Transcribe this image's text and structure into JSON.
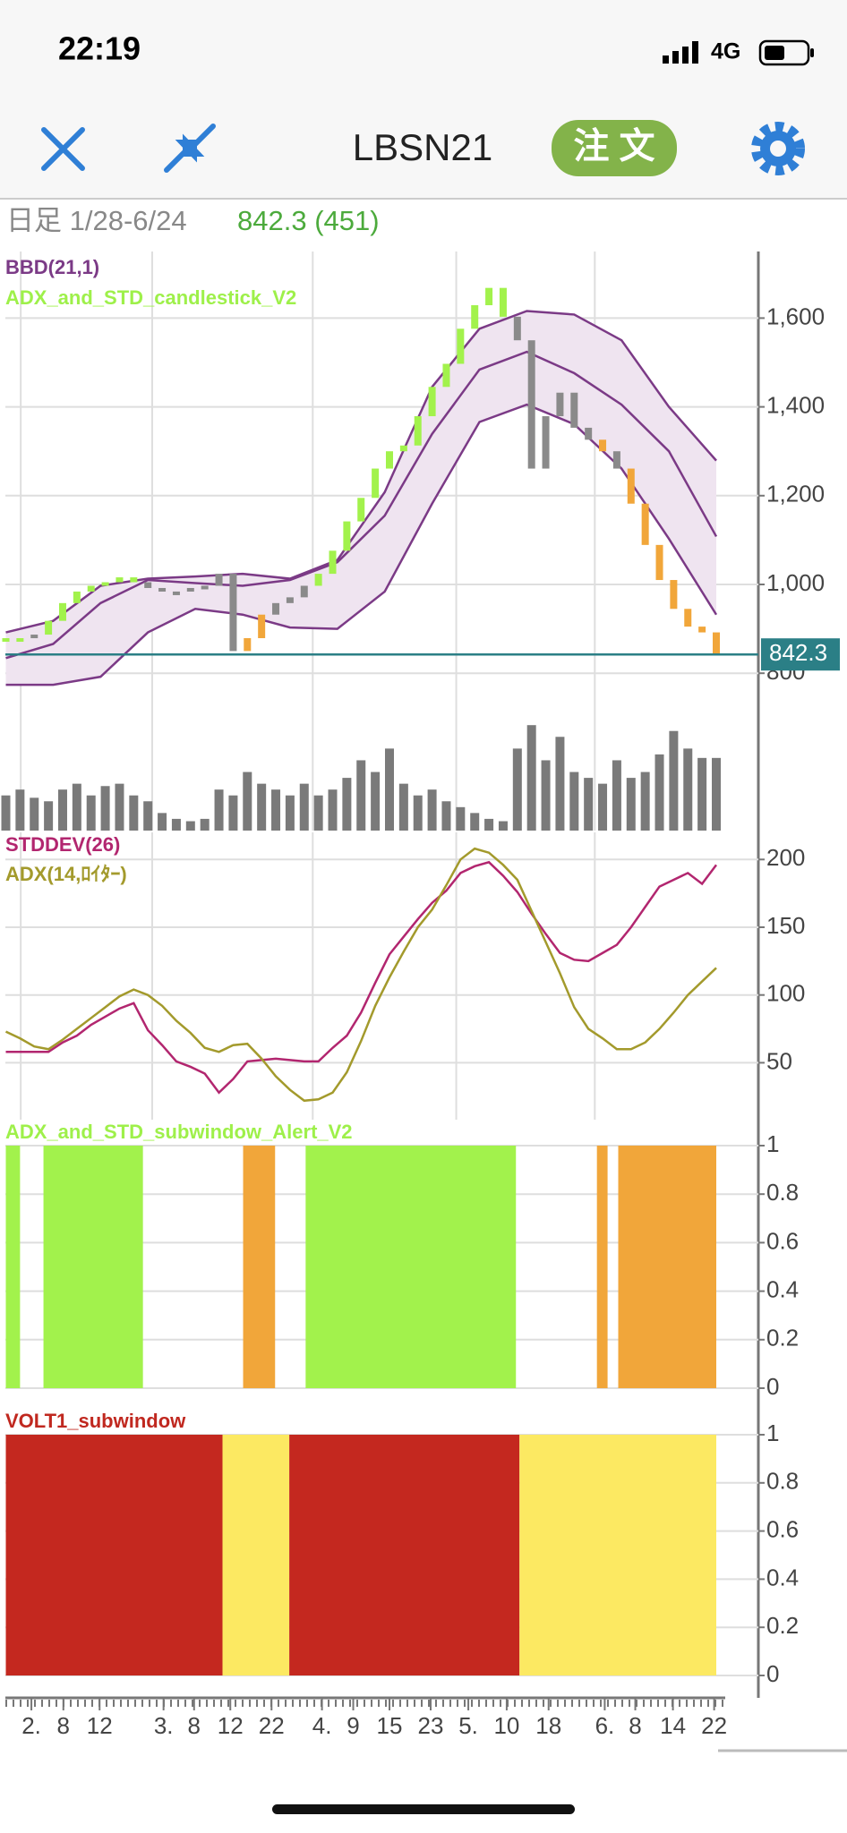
{
  "status_bar": {
    "time": "22:19",
    "network": "4G"
  },
  "header": {
    "title": "LBSN21",
    "order_button": "注 文"
  },
  "info": {
    "period": "日足 1/28-6/24",
    "price": "842.3 (451)"
  },
  "chart_data": [
    {
      "type": "candlestick",
      "labels": [
        {
          "text": "BBD(21,1)",
          "color": "#7b3a86"
        },
        {
          "text": "ADX_and_STD_candlestick_V2",
          "color": "#9ef04a"
        }
      ],
      "xlim": [
        0,
        100
      ],
      "xticks": [
        {
          "value": 3.6,
          "label": "2."
        },
        {
          "value": 8.1,
          "label": "8"
        },
        {
          "value": 13.2,
          "label": "12"
        },
        {
          "value": 22.2,
          "label": "3."
        },
        {
          "value": 26.5,
          "label": "8"
        },
        {
          "value": 31.6,
          "label": "12"
        },
        {
          "value": 37.4,
          "label": "22"
        },
        {
          "value": 44.5,
          "label": "4."
        },
        {
          "value": 48.9,
          "label": "9"
        },
        {
          "value": 54.0,
          "label": "15"
        },
        {
          "value": 59.8,
          "label": "23"
        },
        {
          "value": 65.1,
          "label": "5."
        },
        {
          "value": 70.5,
          "label": "10"
        },
        {
          "value": 76.4,
          "label": "18"
        },
        {
          "value": 84.3,
          "label": "6."
        },
        {
          "value": 88.6,
          "label": "8"
        },
        {
          "value": 93.9,
          "label": "14"
        },
        {
          "value": 99.7,
          "label": "22"
        }
      ],
      "xgrid": [
        2.1,
        20.6,
        43.2,
        63.4,
        82.9
      ],
      "ylim": [
        750,
        1750
      ],
      "yticks": [
        800,
        {
          "value": 1000,
          "label": "1,000"
        },
        {
          "value": 1200,
          "label": "1,200"
        },
        {
          "value": 1400,
          "label": "1,400"
        },
        {
          "value": 1600,
          "label": "1,600"
        }
      ],
      "grid": true,
      "neutral_color": "#8a8a8a",
      "close": [
        879,
        879,
        887,
        918,
        958,
        984,
        997,
        1005,
        1016,
        1005,
        992,
        984,
        984,
        992,
        997,
        1024,
        850,
        879,
        932,
        958,
        971,
        997,
        1024,
        1076,
        1142,
        1195,
        1261,
        1300,
        1313,
        1379,
        1445,
        1497,
        1576,
        1629,
        1668,
        1603,
        1550,
        1261,
        1379,
        1432,
        1353,
        1326,
        1300,
        1261,
        1182,
        1089,
        1010,
        945,
        905,
        892,
        842.3
      ],
      "band_fill": "#efe4f0",
      "bands": [
        {
          "color": "#7b3a86",
          "values": [
            892,
            918,
            997,
            1013,
            1018,
            1024,
            1013,
            1055,
            1208,
            1445,
            1576,
            1616,
            1608,
            1550,
            1400,
            1279
          ]
        },
        {
          "color": "#7b3a86",
          "values": [
            834,
            866,
            958,
            1010,
            1003,
            997,
            1010,
            1050,
            1155,
            1339,
            1484,
            1524,
            1476,
            1405,
            1300,
            1108
          ]
        },
        {
          "color": "#7b3a86",
          "values": [
            774,
            774,
            792,
            892,
            945,
            932,
            903,
            900,
            984,
            1182,
            1366,
            1405,
            1361,
            1261,
            1103,
            932
          ]
        }
      ],
      "last_price": 842.3,
      "last_price_color": "#2b7f86"
    },
    {
      "type": "volume",
      "color": "#7a7a7a",
      "vlim": [
        0,
        110
      ],
      "values": [
        30,
        35,
        28,
        25,
        35,
        40,
        30,
        38,
        40,
        30,
        25,
        15,
        10,
        8,
        10,
        35,
        30,
        50,
        40,
        35,
        30,
        40,
        30,
        35,
        45,
        60,
        50,
        70,
        40,
        30,
        35,
        25,
        20,
        15,
        10,
        8,
        70,
        90,
        60,
        80,
        50,
        45,
        40,
        60,
        45,
        50,
        65,
        85,
        70,
        62,
        62
      ]
    },
    {
      "type": "line",
      "ylim": [
        8,
        220
      ],
      "yticks": [
        50,
        100,
        150,
        200
      ],
      "grid": true,
      "series": [
        {
          "name": "STDDEV(26)",
          "color": "#b2266f",
          "values": [
            58,
            58,
            58,
            58,
            65,
            70,
            78,
            84,
            90,
            94,
            74,
            63,
            51,
            47,
            42,
            28,
            38,
            51,
            52,
            53,
            52,
            51,
            51,
            61,
            70,
            87,
            109,
            130,
            143,
            156,
            168,
            177,
            190,
            195,
            198,
            188,
            176,
            160,
            145,
            131,
            126,
            125,
            131,
            137,
            150,
            165,
            180,
            185,
            190,
            182,
            196
          ]
        },
        {
          "name": "ADX(14,ﾛｲﾀｰ)",
          "color": "#a39a2c",
          "values": [
            73,
            68,
            62,
            60,
            67,
            75,
            83,
            91,
            99,
            104,
            100,
            92,
            81,
            72,
            61,
            58,
            63,
            64,
            53,
            40,
            30,
            22,
            23,
            28,
            43,
            66,
            92,
            113,
            132,
            150,
            163,
            181,
            200,
            208,
            205,
            196,
            185,
            162,
            139,
            116,
            91,
            75,
            68,
            60,
            60,
            65,
            75,
            87,
            100,
            110,
            120
          ]
        }
      ]
    },
    {
      "type": "segments",
      "title": "ADX_and_STD_subwindow_Alert_V2",
      "title_color": "#9ef04a",
      "ylim": [
        0,
        1
      ],
      "yticks": [
        0,
        0.2,
        0.4,
        0.6,
        0.8,
        1
      ],
      "segments": [
        {
          "start": 0,
          "end": 2.0,
          "value": 1,
          "color": "#a2f24c"
        },
        {
          "start": 5.3,
          "end": 19.3,
          "value": 1,
          "color": "#a2f24c"
        },
        {
          "start": 33.4,
          "end": 37.9,
          "value": 1,
          "color": "#f1a63a"
        },
        {
          "start": 42.2,
          "end": 71.8,
          "value": 1,
          "color": "#a2f24c"
        },
        {
          "start": 83.2,
          "end": 84.7,
          "value": 1,
          "color": "#f1a63a"
        },
        {
          "start": 86.2,
          "end": 100,
          "value": 1,
          "color": "#f1a63a"
        }
      ]
    },
    {
      "type": "segments",
      "title": "VOLT1_subwindow",
      "title_color": "#c0281f",
      "ylim": [
        0,
        1
      ],
      "yticks": [
        0,
        0.2,
        0.4,
        0.6,
        0.8,
        1
      ],
      "segments": [
        {
          "start": 0,
          "end": 30.5,
          "value": 1,
          "color": "#c4281f"
        },
        {
          "start": 30.5,
          "end": 39.9,
          "value": 1,
          "color": "#fce962"
        },
        {
          "start": 39.9,
          "end": 72.3,
          "value": 1,
          "color": "#c4281f"
        },
        {
          "start": 72.3,
          "end": 100,
          "value": 1,
          "color": "#fce962"
        }
      ]
    }
  ]
}
